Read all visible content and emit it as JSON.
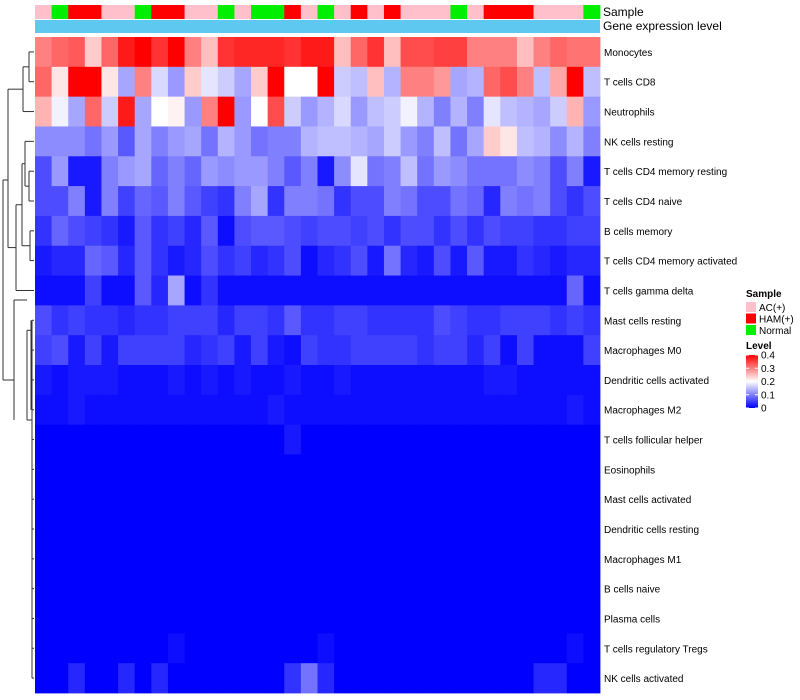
{
  "chart_data": {
    "type": "heatmap",
    "title": "",
    "annotation_labels": {
      "sample": "Sample",
      "gene_expression": "Gene expression level"
    },
    "sample_groups": [
      "AC(+)",
      "HAM(+)",
      "Normal"
    ],
    "group_colors": {
      "AC(+)": "#ffc0cb",
      "HAM(+)": "#ff0000",
      "Normal": "#00ee00"
    },
    "gene_expression_color": "#5ec8f0",
    "columns": [
      "AC(+)",
      "Normal",
      "HAM(+)",
      "HAM(+)",
      "AC(+)",
      "AC(+)",
      "Normal",
      "HAM(+)",
      "HAM(+)",
      "AC(+)",
      "AC(+)",
      "Normal",
      "AC(+)",
      "Normal",
      "Normal",
      "HAM(+)",
      "AC(+)",
      "Normal",
      "AC(+)",
      "HAM(+)",
      "AC(+)",
      "HAM(+)",
      "AC(+)",
      "AC(+)",
      "AC(+)",
      "Normal",
      "AC(+)",
      "HAM(+)",
      "HAM(+)",
      "HAM(+)",
      "AC(+)",
      "AC(+)",
      "AC(+)",
      "Normal"
    ],
    "rows": [
      "Monocytes",
      "T cells CD8",
      "Neutrophils",
      "NK cells resting",
      "T cells CD4 memory resting",
      "T cells CD4 naive",
      "B cells memory",
      "T cells CD4 memory activated",
      "T cells gamma delta",
      "Mast cells resting",
      "Macrophages M0",
      "Dendritic cells activated",
      "Macrophages M2",
      "T cells follicular helper",
      "Eosinophils",
      "Mast cells activated",
      "Dendritic cells resting",
      "Macrophages M1",
      "B cells naive",
      "Plasma cells",
      "T cells regulatory  Tregs",
      "NK cells activated"
    ],
    "values": [
      [
        0.3,
        0.32,
        0.33,
        0.24,
        0.32,
        0.38,
        0.42,
        0.36,
        0.4,
        0.3,
        0.25,
        0.36,
        0.37,
        0.37,
        0.37,
        0.36,
        0.38,
        0.38,
        0.25,
        0.32,
        0.36,
        0.25,
        0.34,
        0.34,
        0.35,
        0.35,
        0.3,
        0.3,
        0.3,
        0.25,
        0.3,
        0.32,
        0.31,
        0.31
      ],
      [
        0.32,
        0.22,
        0.4,
        0.42,
        0.22,
        0.13,
        0.3,
        0.17,
        0.12,
        0.24,
        0.18,
        0.16,
        0.13,
        0.24,
        0.4,
        0.2,
        0.2,
        0.4,
        0.16,
        0.15,
        0.25,
        0.14,
        0.3,
        0.3,
        0.28,
        0.13,
        0.14,
        0.32,
        0.34,
        0.3,
        0.15,
        0.27,
        0.42,
        0.15
      ],
      [
        0.26,
        0.19,
        0.13,
        0.32,
        0.16,
        0.38,
        0.13,
        0.2,
        0.21,
        0.12,
        0.3,
        0.42,
        0.12,
        0.2,
        0.34,
        0.16,
        0.12,
        0.14,
        0.17,
        0.12,
        0.15,
        0.16,
        0.19,
        0.14,
        0.1,
        0.14,
        0.1,
        0.18,
        0.15,
        0.14,
        0.13,
        0.16,
        0.26,
        0.12
      ],
      [
        0.11,
        0.11,
        0.11,
        0.09,
        0.12,
        0.07,
        0.13,
        0.1,
        0.12,
        0.13,
        0.09,
        0.14,
        0.12,
        0.09,
        0.1,
        0.1,
        0.14,
        0.15,
        0.15,
        0.14,
        0.13,
        0.16,
        0.12,
        0.1,
        0.15,
        0.09,
        0.13,
        0.24,
        0.22,
        0.15,
        0.14,
        0.11,
        0.14,
        0.1
      ],
      [
        0.06,
        0.12,
        0.02,
        0.02,
        0.1,
        0.12,
        0.13,
        0.08,
        0.1,
        0.08,
        0.12,
        0.11,
        0.12,
        0.12,
        0.1,
        0.07,
        0.1,
        0.02,
        0.11,
        0.18,
        0.09,
        0.1,
        0.15,
        0.09,
        0.12,
        0.11,
        0.09,
        0.09,
        0.09,
        0.11,
        0.1,
        0.06,
        0.1,
        0.02
      ],
      [
        0.06,
        0.06,
        0.1,
        0.02,
        0.1,
        0.05,
        0.08,
        0.07,
        0.1,
        0.07,
        0.05,
        0.04,
        0.1,
        0.13,
        0.04,
        0.1,
        0.1,
        0.09,
        0.04,
        0.06,
        0.06,
        0.1,
        0.09,
        0.06,
        0.06,
        0.09,
        0.08,
        0.03,
        0.1,
        0.09,
        0.1,
        0.06,
        0.04,
        0.06
      ],
      [
        0.04,
        0.08,
        0.06,
        0.05,
        0.04,
        0.02,
        0.07,
        0.04,
        0.05,
        0.03,
        0.07,
        0.01,
        0.06,
        0.07,
        0.07,
        0.06,
        0.05,
        0.06,
        0.06,
        0.05,
        0.06,
        0.04,
        0.06,
        0.06,
        0.04,
        0.06,
        0.04,
        0.06,
        0.05,
        0.05,
        0.04,
        0.04,
        0.05,
        0.05
      ],
      [
        0.02,
        0.03,
        0.03,
        0.08,
        0.07,
        0.03,
        0.07,
        0.04,
        0.02,
        0.03,
        0.06,
        0.04,
        0.05,
        0.03,
        0.04,
        0.06,
        0.01,
        0.03,
        0.04,
        0.06,
        0.02,
        0.09,
        0.03,
        0.02,
        0.06,
        0.02,
        0.07,
        0.02,
        0.02,
        0.04,
        0.03,
        0.02,
        0.03,
        0.03
      ],
      [
        0.01,
        0.01,
        0.01,
        0.05,
        0.01,
        0.01,
        0.07,
        0.03,
        0.13,
        0.01,
        0.04,
        0.01,
        0.01,
        0.01,
        0.01,
        0.01,
        0.01,
        0.01,
        0.01,
        0.01,
        0.01,
        0.01,
        0.01,
        0.01,
        0.01,
        0.01,
        0.01,
        0.01,
        0.01,
        0.01,
        0.01,
        0.01,
        0.08,
        0.01
      ],
      [
        0.06,
        0.04,
        0.05,
        0.04,
        0.04,
        0.03,
        0.04,
        0.04,
        0.05,
        0.05,
        0.05,
        0.03,
        0.05,
        0.05,
        0.04,
        0.07,
        0.04,
        0.04,
        0.05,
        0.05,
        0.04,
        0.04,
        0.04,
        0.04,
        0.06,
        0.05,
        0.04,
        0.04,
        0.05,
        0.05,
        0.05,
        0.04,
        0.05,
        0.04
      ],
      [
        0.05,
        0.06,
        0.02,
        0.05,
        0.02,
        0.05,
        0.05,
        0.05,
        0.05,
        0.03,
        0.04,
        0.05,
        0.02,
        0.05,
        0.02,
        0.01,
        0.05,
        0.04,
        0.04,
        0.05,
        0.05,
        0.05,
        0.05,
        0.04,
        0.05,
        0.05,
        0.03,
        0.05,
        0.01,
        0.05,
        0.01,
        0.01,
        0.01,
        0.05
      ],
      [
        0.02,
        0.01,
        0.02,
        0.02,
        0.02,
        0.01,
        0.01,
        0.01,
        0.02,
        0.01,
        0.02,
        0.01,
        0.02,
        0.01,
        0.01,
        0.02,
        0.01,
        0.01,
        0.02,
        0.01,
        0.01,
        0.01,
        0.01,
        0.01,
        0.01,
        0.01,
        0.01,
        0.02,
        0.02,
        0.01,
        0.01,
        0.01,
        0.01,
        0.01
      ],
      [
        0.01,
        0.01,
        0.02,
        0.01,
        0.01,
        0.01,
        0.01,
        0.01,
        0.01,
        0.01,
        0.01,
        0.01,
        0.01,
        0.01,
        0.02,
        0.01,
        0.01,
        0.01,
        0.01,
        0.01,
        0.01,
        0.01,
        0.01,
        0.01,
        0.01,
        0.01,
        0.01,
        0.01,
        0.01,
        0.01,
        0.01,
        0.01,
        0.02,
        0.01
      ],
      [
        0,
        0,
        0,
        0,
        0,
        0,
        0,
        0,
        0,
        0,
        0,
        0,
        0,
        0,
        0,
        0.02,
        0,
        0,
        0,
        0,
        0,
        0,
        0,
        0,
        0,
        0,
        0,
        0,
        0,
        0,
        0,
        0,
        0,
        0
      ],
      [
        0,
        0,
        0,
        0,
        0,
        0,
        0,
        0,
        0,
        0,
        0,
        0,
        0,
        0,
        0,
        0,
        0,
        0,
        0,
        0,
        0,
        0,
        0,
        0,
        0,
        0,
        0,
        0,
        0,
        0,
        0,
        0,
        0,
        0
      ],
      [
        0,
        0,
        0,
        0,
        0,
        0,
        0,
        0,
        0,
        0,
        0,
        0,
        0,
        0,
        0,
        0,
        0,
        0,
        0,
        0,
        0,
        0,
        0,
        0,
        0,
        0,
        0,
        0,
        0,
        0,
        0,
        0,
        0,
        0
      ],
      [
        0,
        0,
        0,
        0,
        0,
        0,
        0,
        0,
        0,
        0,
        0,
        0,
        0,
        0,
        0,
        0,
        0,
        0,
        0,
        0,
        0,
        0,
        0,
        0,
        0,
        0,
        0,
        0,
        0,
        0,
        0,
        0,
        0,
        0
      ],
      [
        0,
        0,
        0,
        0,
        0,
        0,
        0,
        0,
        0,
        0,
        0,
        0,
        0,
        0,
        0,
        0,
        0,
        0,
        0,
        0,
        0,
        0,
        0,
        0,
        0,
        0,
        0,
        0,
        0,
        0,
        0,
        0,
        0,
        0
      ],
      [
        0,
        0,
        0,
        0,
        0,
        0,
        0,
        0,
        0,
        0,
        0,
        0,
        0,
        0,
        0,
        0,
        0,
        0,
        0,
        0,
        0,
        0,
        0,
        0,
        0,
        0,
        0,
        0,
        0,
        0,
        0,
        0,
        0,
        0
      ],
      [
        0,
        0,
        0,
        0,
        0,
        0,
        0,
        0,
        0,
        0,
        0,
        0,
        0,
        0,
        0,
        0,
        0,
        0,
        0,
        0,
        0,
        0,
        0,
        0,
        0,
        0,
        0,
        0,
        0,
        0,
        0,
        0,
        0,
        0
      ],
      [
        0,
        0,
        0,
        0,
        0,
        0,
        0,
        0,
        0.01,
        0,
        0,
        0,
        0,
        0,
        0,
        0,
        0,
        0.01,
        0,
        0,
        0,
        0,
        0,
        0,
        0,
        0,
        0,
        0,
        0,
        0,
        0,
        0,
        0.01,
        0
      ],
      [
        0,
        0,
        0.03,
        0,
        0,
        0.03,
        0,
        0.03,
        0,
        0,
        0,
        0,
        0,
        0,
        0,
        0.04,
        0.09,
        0.03,
        0,
        0,
        0,
        0,
        0,
        0,
        0,
        0,
        0,
        0,
        0,
        0,
        0.03,
        0.03,
        0,
        0
      ]
    ],
    "color_scale": {
      "min": 0,
      "mid": 0.2,
      "max": 0.4,
      "low": "#0000ff",
      "midColor": "#ffffff",
      "high": "#ff0000"
    },
    "legend": {
      "sample_title": "Sample",
      "level_title": "Level",
      "level_ticks": [
        0.4,
        0.3,
        0.2,
        0.1,
        0
      ],
      "position": "right"
    }
  }
}
